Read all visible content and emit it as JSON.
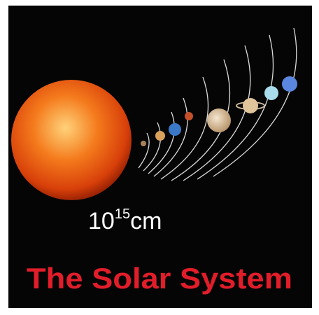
{
  "label": {
    "base": "10",
    "exponent": "15",
    "unit": "cm"
  },
  "caption": "The Solar System"
}
